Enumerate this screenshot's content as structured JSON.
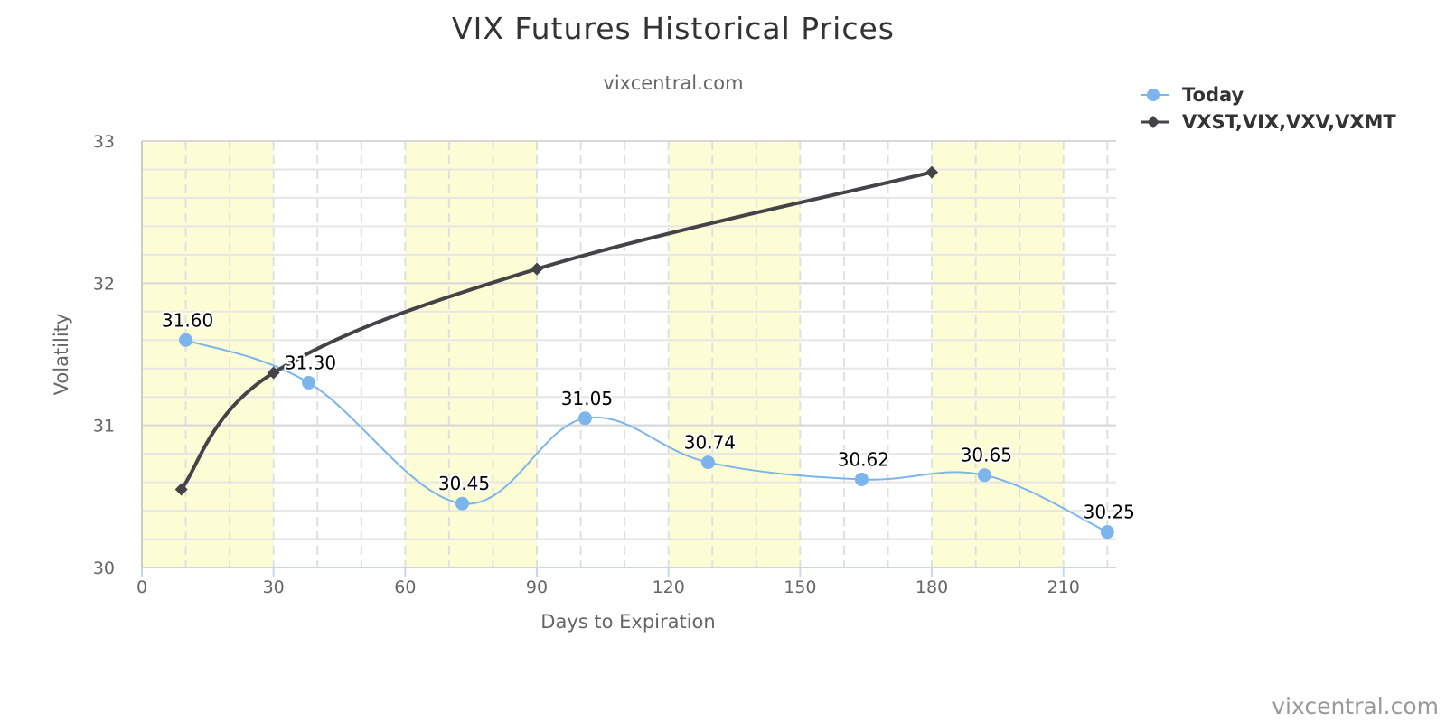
{
  "chart_data": {
    "type": "line",
    "title": "VIX Futures Historical Prices",
    "subtitle": "vixcentral.com",
    "xlabel": "Days to Expiration",
    "ylabel": "Volatility",
    "xlim": [
      0,
      222
    ],
    "ylim": [
      30,
      33
    ],
    "x_ticks": [
      0,
      30,
      60,
      90,
      120,
      150,
      180,
      210
    ],
    "y_ticks": [
      30,
      31,
      32,
      33
    ],
    "grid": true,
    "shaded_x_bands": [
      [
        0,
        30
      ],
      [
        60,
        90
      ],
      [
        120,
        150
      ],
      [
        180,
        210
      ]
    ],
    "band_color": "#fdfdd5",
    "legend_position": "top-right",
    "series": [
      {
        "name": "Today",
        "color": "#7cb5ec",
        "marker": "circle",
        "smooth": true,
        "data_labels": true,
        "points": [
          {
            "x": 10,
            "y": 31.6,
            "label": "31.60"
          },
          {
            "x": 38,
            "y": 31.3,
            "label": "31.30"
          },
          {
            "x": 73,
            "y": 30.45,
            "label": "30.45"
          },
          {
            "x": 101,
            "y": 31.05,
            "label": "31.05"
          },
          {
            "x": 129,
            "y": 30.74,
            "label": "30.74"
          },
          {
            "x": 164,
            "y": 30.62,
            "label": "30.62"
          },
          {
            "x": 192,
            "y": 30.65,
            "label": "30.65"
          },
          {
            "x": 220,
            "y": 30.25,
            "label": "30.25"
          }
        ]
      },
      {
        "name": "VXST,VIX,VXV,VXMT",
        "color": "#434348",
        "marker": "diamond",
        "smooth": true,
        "data_labels": false,
        "points": [
          {
            "x": 9,
            "y": 30.55
          },
          {
            "x": 30,
            "y": 31.37
          },
          {
            "x": 90,
            "y": 32.1
          },
          {
            "x": 180,
            "y": 32.78
          }
        ]
      }
    ]
  },
  "credit": "vixcentral.com"
}
